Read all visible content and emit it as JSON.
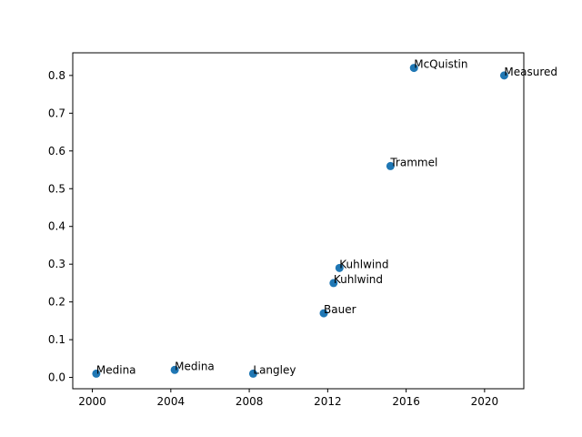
{
  "chart_data": {
    "type": "scatter",
    "title": "",
    "xlabel": "",
    "ylabel": "",
    "xlim": [
      1999,
      2022
    ],
    "ylim": [
      -0.03,
      0.86
    ],
    "xticks": [
      "2000",
      "2004",
      "2008",
      "2012",
      "2016",
      "2020"
    ],
    "yticks": [
      "0.0",
      "0.1",
      "0.2",
      "0.3",
      "0.4",
      "0.5",
      "0.6",
      "0.7",
      "0.8"
    ],
    "grid": false,
    "marker_color": "#1f77b4",
    "points": [
      {
        "x": 2000.2,
        "y": 0.01,
        "label": "Medina"
      },
      {
        "x": 2004.2,
        "y": 0.02,
        "label": "Medina"
      },
      {
        "x": 2008.2,
        "y": 0.01,
        "label": "Langley"
      },
      {
        "x": 2011.8,
        "y": 0.17,
        "label": "Bauer"
      },
      {
        "x": 2012.3,
        "y": 0.25,
        "label": "Kuhlwind"
      },
      {
        "x": 2012.6,
        "y": 0.29,
        "label": "Kuhlwind"
      },
      {
        "x": 2015.2,
        "y": 0.56,
        "label": "Trammel"
      },
      {
        "x": 2016.4,
        "y": 0.82,
        "label": "McQuistin"
      },
      {
        "x": 2021.0,
        "y": 0.8,
        "label": "Measured"
      }
    ]
  }
}
